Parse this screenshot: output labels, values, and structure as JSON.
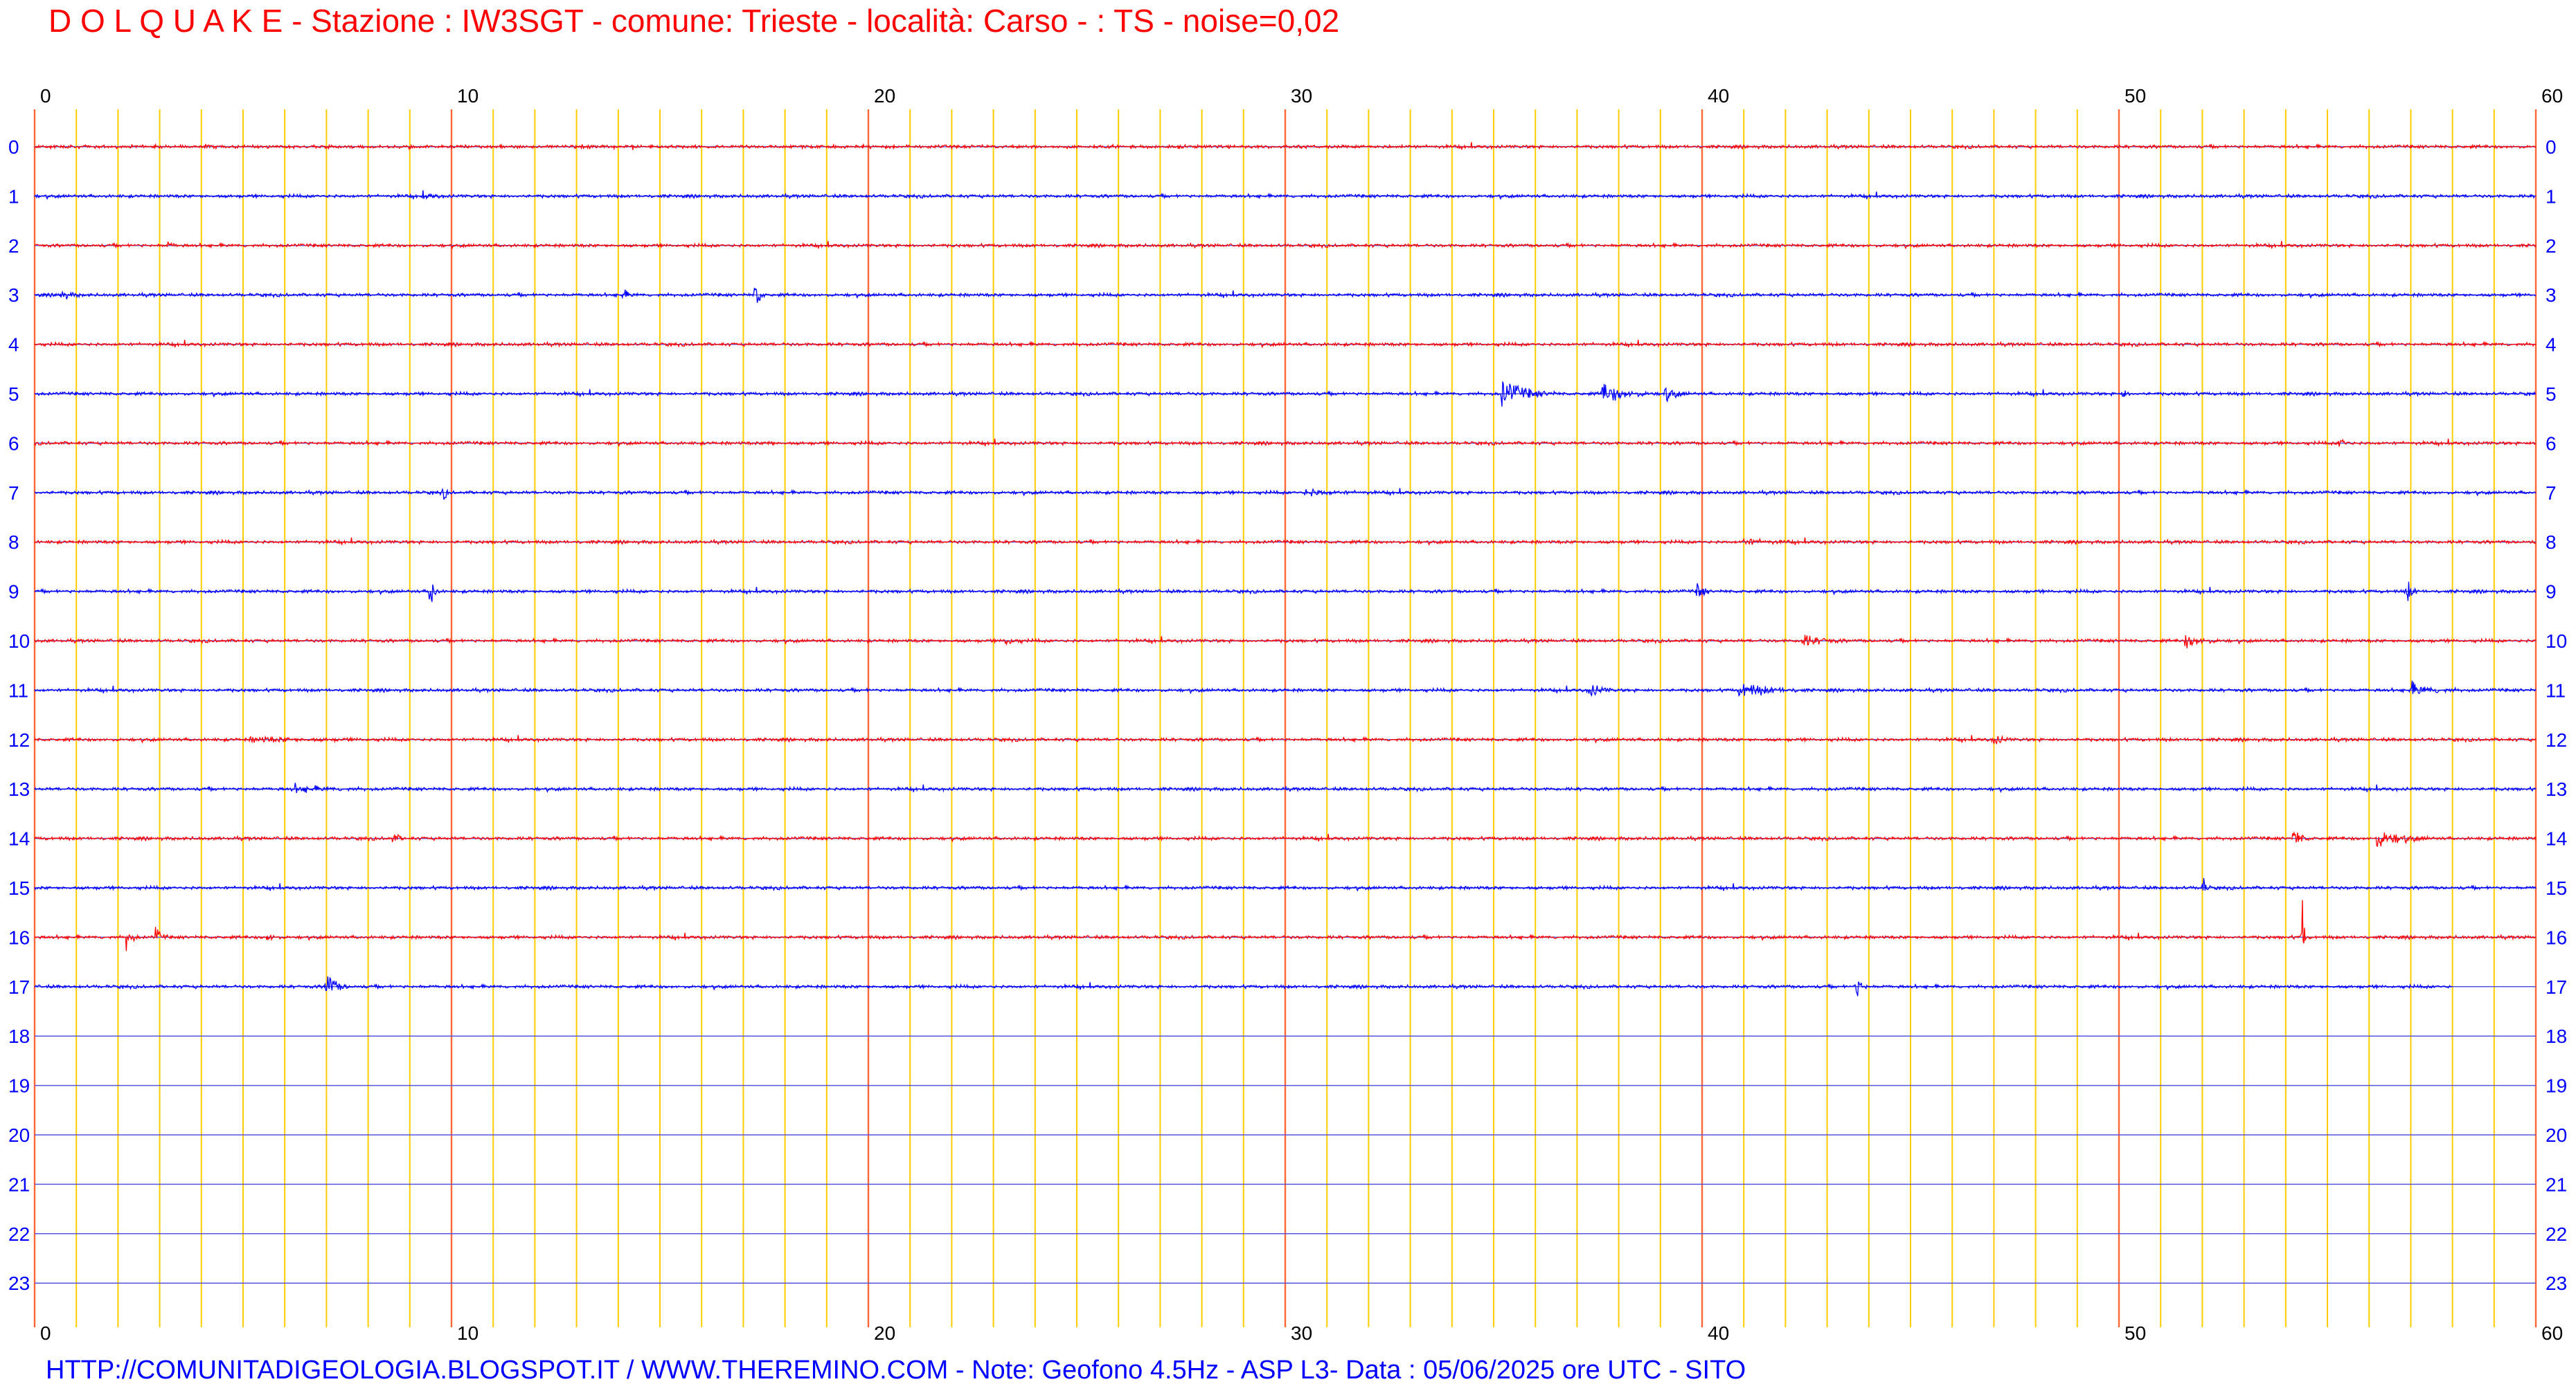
{
  "header": {
    "title": "D O L Q U A K E - Stazione : IW3SGT - comune: Trieste - località: Carso - : TS -  noise=0,02"
  },
  "footer": {
    "text": "HTTP://COMUNITADIGEOLOGIA.BLOGSPOT.IT /  WWW.THEREMINO.COM  -  Note: Geofono 4.5Hz - ASP L3- Data : 05/06/2025 ore UTC - SITO"
  },
  "colors": {
    "title": "#ff0000",
    "footer": "#0000ff",
    "minute_tick_labels": "#000000",
    "hour_labels": "#0000ff",
    "trace_even_hour": "#ff0000",
    "trace_odd_hour": "#0000ff",
    "baseline": "#5555dd",
    "minute_line": "#ffcc00",
    "ten_minute_line": "#ff6633"
  },
  "chart_data": {
    "type": "line",
    "description_kind": "helicorder",
    "x_axis": {
      "unit": "minutes",
      "range": [
        0,
        60
      ],
      "tick_values": [
        0,
        10,
        20,
        30,
        40,
        50,
        60
      ],
      "tick_labels": [
        "0",
        "10",
        "20",
        "30",
        "40",
        "50",
        "60"
      ],
      "minor_step": 1,
      "major_step": 10
    },
    "y_axis": {
      "unit": "hour",
      "range": [
        0,
        23
      ],
      "row_labels": [
        "0",
        "1",
        "2",
        "3",
        "4",
        "5",
        "6",
        "7",
        "8",
        "9",
        "10",
        "11",
        "12",
        "13",
        "14",
        "15",
        "16",
        "17",
        "18",
        "19",
        "20",
        "21",
        "22",
        "23"
      ]
    },
    "recorded_hours": [
      0,
      1,
      2,
      3,
      4,
      5,
      6,
      7,
      8,
      9,
      10,
      11,
      12,
      13,
      14,
      15,
      16,
      17
    ],
    "last_recorded_minute": 58,
    "events": [
      {
        "hour": 1,
        "minute": 9.3,
        "amp": 0.1,
        "dur": 0.7
      },
      {
        "hour": 2,
        "minute": 3.2,
        "amp": 0.15,
        "dur": 0.3
      },
      {
        "hour": 3,
        "minute": 0.6,
        "amp": 0.2,
        "dur": 0.6
      },
      {
        "hour": 3,
        "minute": 14.1,
        "amp": 0.2,
        "dur": 0.4
      },
      {
        "hour": 3,
        "minute": 17.3,
        "amp": 1.1,
        "dur": 0.2
      },
      {
        "hour": 5,
        "minute": 35.2,
        "amp": 0.65,
        "dur": 1.3
      },
      {
        "hour": 5,
        "minute": 37.6,
        "amp": 0.5,
        "dur": 1.3
      },
      {
        "hour": 5,
        "minute": 39.1,
        "amp": 0.35,
        "dur": 0.6
      },
      {
        "hour": 5,
        "minute": 50.1,
        "amp": 0.25,
        "dur": 0.2
      },
      {
        "hour": 6,
        "minute": 17.6,
        "amp": 0.2,
        "dur": 0.2
      },
      {
        "hour": 6,
        "minute": 55.3,
        "amp": 0.35,
        "dur": 0.3
      },
      {
        "hour": 7,
        "minute": 9.8,
        "amp": 0.3,
        "dur": 0.2
      },
      {
        "hour": 7,
        "minute": 30.5,
        "amp": 0.15,
        "dur": 1.5
      },
      {
        "hour": 8,
        "minute": 41.0,
        "amp": 0.15,
        "dur": 1.1
      },
      {
        "hour": 9,
        "minute": 9.5,
        "amp": 1.3,
        "dur": 0.2
      },
      {
        "hour": 9,
        "minute": 39.9,
        "amp": 0.5,
        "dur": 0.3
      },
      {
        "hour": 9,
        "minute": 56.9,
        "amp": 0.6,
        "dur": 0.3
      },
      {
        "hour": 10,
        "minute": 23.3,
        "amp": 0.3,
        "dur": 0.4
      },
      {
        "hour": 10,
        "minute": 42.4,
        "amp": 0.3,
        "dur": 1.0
      },
      {
        "hour": 10,
        "minute": 51.6,
        "amp": 0.3,
        "dur": 1.0
      },
      {
        "hour": 11,
        "minute": 37.3,
        "amp": 0.35,
        "dur": 0.6
      },
      {
        "hour": 11,
        "minute": 40.9,
        "amp": 0.35,
        "dur": 1.6
      },
      {
        "hour": 11,
        "minute": 57.0,
        "amp": 0.3,
        "dur": 1.2
      },
      {
        "hour": 12,
        "minute": 5.2,
        "amp": 0.1,
        "dur": 3.0
      },
      {
        "hour": 12,
        "minute": 47.0,
        "amp": 0.3,
        "dur": 0.4
      },
      {
        "hour": 13,
        "minute": 6.2,
        "amp": 0.15,
        "dur": 1.8
      },
      {
        "hour": 14,
        "minute": 54.2,
        "amp": 0.5,
        "dur": 0.4
      },
      {
        "hour": 14,
        "minute": 56.2,
        "amp": 0.45,
        "dur": 1.3
      },
      {
        "hour": 14,
        "minute": 8.6,
        "amp": 0.25,
        "dur": 0.3
      },
      {
        "hour": 15,
        "minute": 52.0,
        "amp": 0.6,
        "dur": 0.2
      },
      {
        "hour": 16,
        "minute": 2.2,
        "amp": 0.55,
        "dur": 0.3
      },
      {
        "hour": 16,
        "minute": 2.9,
        "amp": 0.45,
        "dur": 0.3
      },
      {
        "hour": 16,
        "minute": 5.6,
        "amp": 0.25,
        "dur": 0.3
      },
      {
        "hour": 16,
        "minute": 54.4,
        "amp": 2.1,
        "dur": 0.1
      },
      {
        "hour": 17,
        "minute": 7.0,
        "amp": 0.8,
        "dur": 0.5
      },
      {
        "hour": 17,
        "minute": 43.7,
        "amp": 0.6,
        "dur": 0.3
      }
    ]
  }
}
